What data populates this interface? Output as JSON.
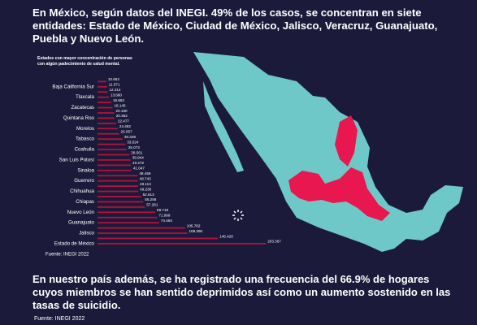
{
  "intro": "En México, según datos del INEGI. 49% de los casos, se concentran en siete entidades: Estado de México, Ciudad de México, Jalisco, Veracruz, Guanajuato, Puebla y Nuevo León.",
  "chart_data": {
    "type": "bar",
    "orientation": "horizontal",
    "title": "Estados con mayor concentración de personas con algún padecimiento de salud mental.",
    "categories": [
      null,
      "Baja California Sur",
      null,
      "Tlaxcala",
      null,
      "Zacatecas",
      null,
      "Quintana Roo",
      null,
      "Morelos",
      null,
      "Tabasco",
      null,
      "Coahuila",
      null,
      "San Luis Potosí",
      null,
      "Sinaloa",
      null,
      "Guerrero",
      null,
      "Chihuahua",
      null,
      "Chiapas",
      null,
      "Nuevo León",
      null,
      "Guanajuato",
      null,
      "Jalisco",
      null,
      "Estado de México"
    ],
    "values": [
      10652,
      11571,
      12214,
      13660,
      16662,
      18145,
      20160,
      20352,
      22477,
      24462,
      26057,
      30329,
      33624,
      35073,
      38561,
      39944,
      40272,
      41047,
      48459,
      48743,
      49113,
      49230,
      52613,
      55256,
      57281,
      69719,
      71999,
      74464,
      105782,
      108390,
      145428,
      203367
    ],
    "value_labels": [
      "10.652",
      "11.571",
      "12.214",
      "13.660",
      "16.662",
      "18.145",
      "20.160",
      "20.352",
      "22.477",
      "24.462",
      "26.057",
      "30.329",
      "33.624",
      "35.073",
      "38.561",
      "39.944",
      "40.272",
      "41.047",
      "48.459",
      "48.743",
      "49.113",
      "49.230",
      "52.613",
      "55.256",
      "57.281",
      "69.719",
      "71.999",
      "74.464",
      "105.782",
      "108.390",
      "145.428",
      "203.367"
    ],
    "color": "#b3123a",
    "xlim": [
      0,
      210000
    ],
    "source": "Fuente: INEGI 2022"
  },
  "body": "En nuestro país además, se ha registrado una frecuencia del 66.9% de hogares cuyos miembros se han sentido deprimidos así como un aumento sostenido en las tasas de suicidio.",
  "body_source": "Fuente: INEGI 2022"
}
